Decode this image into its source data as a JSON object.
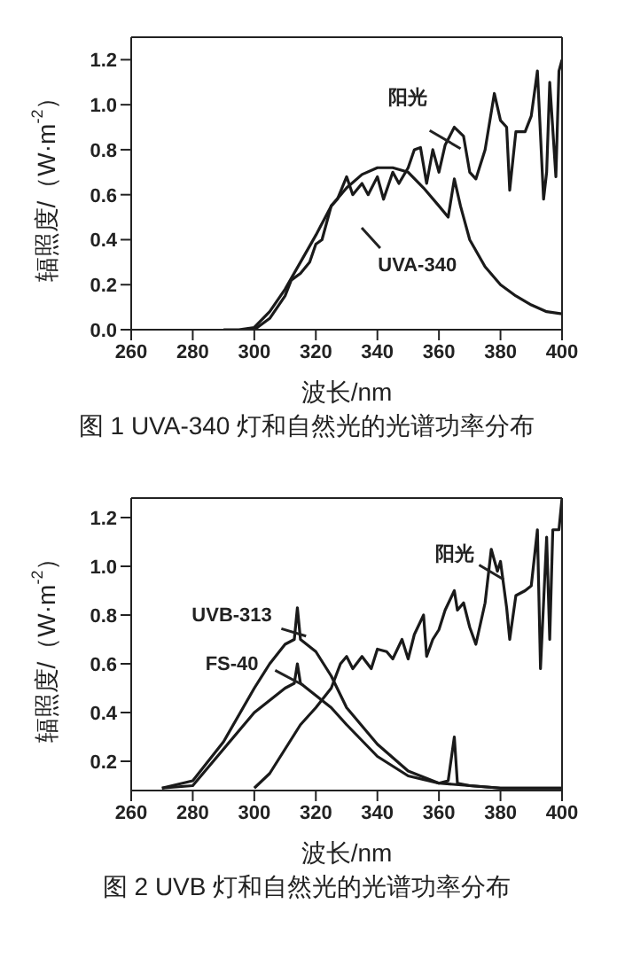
{
  "chart_data": [
    {
      "type": "line",
      "title": "图 1  UVA-340 灯和自然光的光谱功率分布",
      "xlabel": "波长/nm",
      "ylabel": "辐照度/（W·m$^{-2}$）",
      "xlim": [
        260,
        400
      ],
      "xticks": [
        260,
        280,
        300,
        320,
        340,
        360,
        380,
        400
      ],
      "ylim": [
        0,
        1.3
      ],
      "yticks": [
        {
          "value": 0,
          "label": "0.0"
        },
        {
          "value": 0.2,
          "label": "0.2"
        },
        {
          "value": 0.4,
          "label": "0.4"
        },
        {
          "value": 0.6,
          "label": "0.6"
        },
        {
          "value": 0.8,
          "label": "0.8"
        },
        {
          "value": 1,
          "label": "1.0"
        },
        {
          "value": 1.2,
          "label": "1.2"
        }
      ],
      "grid": false,
      "series": [
        {
          "name": "阳光",
          "color": "#1a1a1a",
          "x": [
            300,
            305,
            310,
            312,
            315,
            318,
            320,
            322,
            325,
            327,
            330,
            332,
            335,
            337,
            340,
            342,
            345,
            347,
            350,
            352,
            354,
            356,
            358,
            360,
            362,
            365,
            368,
            370,
            372,
            375,
            378,
            380,
            382,
            383,
            385,
            388,
            390,
            392,
            394,
            395,
            396,
            398,
            399,
            400
          ],
          "values": [
            0,
            0.05,
            0.15,
            0.22,
            0.25,
            0.3,
            0.38,
            0.4,
            0.55,
            0.58,
            0.68,
            0.6,
            0.65,
            0.6,
            0.68,
            0.58,
            0.7,
            0.65,
            0.72,
            0.8,
            0.81,
            0.65,
            0.8,
            0.7,
            0.82,
            0.9,
            0.86,
            0.7,
            0.67,
            0.8,
            1.05,
            0.93,
            0.9,
            0.62,
            0.88,
            0.88,
            0.95,
            1.15,
            0.58,
            0.7,
            1.1,
            0.68,
            1.15,
            1.2
          ]
        },
        {
          "name": "UVA-340",
          "color": "#1a1a1a",
          "x": [
            290,
            295,
            300,
            305,
            310,
            315,
            320,
            325,
            330,
            335,
            340,
            345,
            350,
            355,
            360,
            363,
            365,
            367,
            370,
            375,
            380,
            385,
            390,
            395,
            400
          ],
          "values": [
            0,
            0,
            0.01,
            0.08,
            0.18,
            0.3,
            0.42,
            0.55,
            0.63,
            0.69,
            0.72,
            0.72,
            0.7,
            0.63,
            0.55,
            0.5,
            0.67,
            0.55,
            0.4,
            0.28,
            0.2,
            0.15,
            0.11,
            0.08,
            0.07
          ]
        }
      ]
    },
    {
      "type": "line",
      "title": "图 2  UVB 灯和自然光的光谱功率分布",
      "xlabel": "波长/nm",
      "ylabel": "辐照度/（W·m$^{-2}$）",
      "xlim": [
        260,
        400
      ],
      "xticks": [
        260,
        280,
        300,
        320,
        340,
        360,
        380,
        400
      ],
      "ylim": [
        0.08,
        1.28
      ],
      "yticks": [
        0.2,
        0.4,
        0.6,
        0.8,
        {
          "value": 1,
          "label": "1.0"
        },
        1.2
      ],
      "grid": false,
      "series": [
        {
          "name": "阳光",
          "color": "#1a1a1a",
          "x": [
            300,
            305,
            310,
            315,
            320,
            325,
            328,
            330,
            332,
            335,
            338,
            340,
            343,
            345,
            348,
            350,
            352,
            355,
            356,
            358,
            360,
            362,
            365,
            366,
            368,
            370,
            372,
            375,
            377,
            379,
            380,
            382,
            383,
            385,
            388,
            390,
            392,
            393,
            395,
            396,
            397,
            399,
            400
          ],
          "values": [
            0.09,
            0.15,
            0.25,
            0.35,
            0.42,
            0.5,
            0.6,
            0.63,
            0.58,
            0.63,
            0.58,
            0.66,
            0.65,
            0.62,
            0.7,
            0.62,
            0.72,
            0.8,
            0.63,
            0.7,
            0.74,
            0.82,
            0.9,
            0.82,
            0.85,
            0.75,
            0.68,
            0.85,
            1.07,
            0.98,
            1.02,
            0.83,
            0.7,
            0.88,
            0.9,
            0.92,
            1.15,
            0.58,
            1.12,
            0.7,
            1.15,
            1.15,
            1.28
          ]
        },
        {
          "name": "UVB-313",
          "color": "#1a1a1a",
          "x": [
            270,
            280,
            290,
            300,
            305,
            310,
            313,
            314,
            315,
            320,
            325,
            330,
            340,
            350,
            360,
            370,
            380,
            400
          ],
          "values": [
            0.09,
            0.12,
            0.28,
            0.5,
            0.6,
            0.68,
            0.7,
            0.83,
            0.7,
            0.65,
            0.55,
            0.42,
            0.27,
            0.16,
            0.11,
            0.1,
            0.09,
            0.09
          ]
        },
        {
          "name": "FS-40",
          "color": "#1a1a1a",
          "x": [
            270,
            280,
            290,
            300,
            310,
            313,
            314,
            315,
            320,
            325,
            330,
            340,
            350,
            360,
            363,
            365,
            366,
            370,
            380,
            400
          ],
          "values": [
            0.09,
            0.1,
            0.25,
            0.4,
            0.5,
            0.52,
            0.6,
            0.52,
            0.47,
            0.42,
            0.35,
            0.22,
            0.14,
            0.11,
            0.12,
            0.3,
            0.11,
            0.1,
            0.09,
            0.09
          ]
        }
      ]
    }
  ]
}
